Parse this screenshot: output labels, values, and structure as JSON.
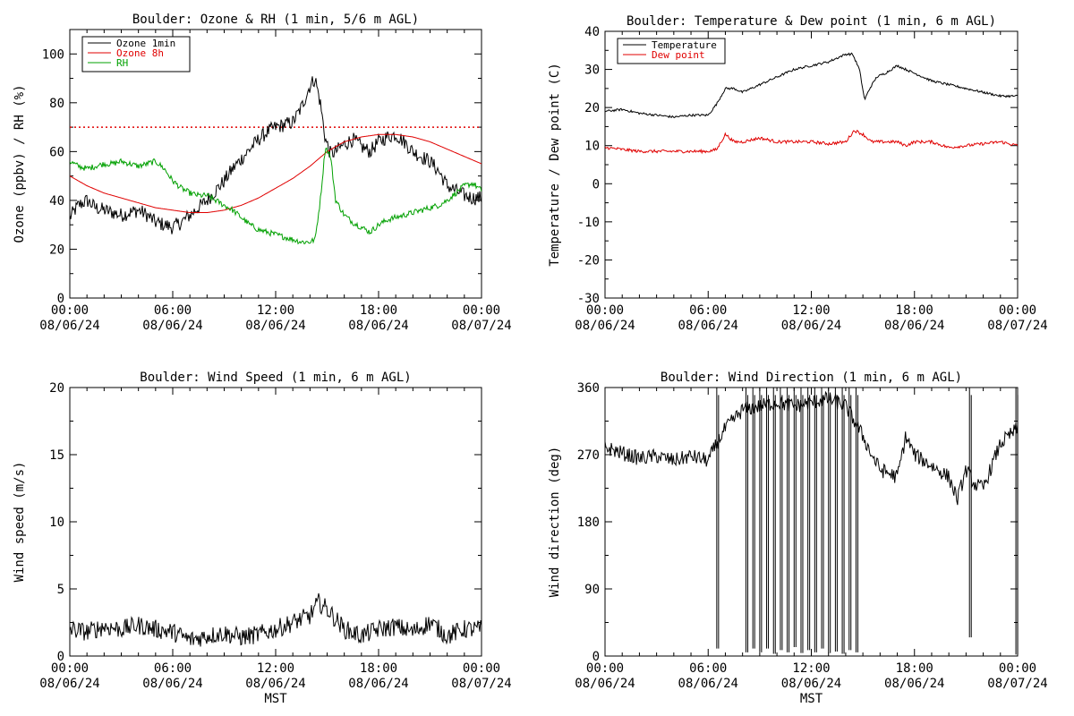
{
  "x_ticks": {
    "times": [
      "00:00",
      "06:00",
      "12:00",
      "18:00",
      "00:00"
    ],
    "dates": [
      "08/06/24",
      "08/06/24",
      "08/06/24",
      "08/06/24",
      "08/07/24"
    ]
  },
  "colors": {
    "black": "#000000",
    "red": "#e00000",
    "green": "#00a000"
  },
  "chart_data": [
    {
      "type": "line",
      "title": "Boulder: Ozone & RH (1 min, 5/6 m AGL)",
      "xlabel": "",
      "ylabel": "Ozone (ppbv) / RH (%)",
      "xlim": [
        0,
        24
      ],
      "ylim": [
        0,
        110
      ],
      "yticks": [
        0,
        20,
        40,
        60,
        80,
        100
      ],
      "legend_position": "top-left",
      "reference_line": {
        "y": 70,
        "style": "dotted",
        "color": "#e00000"
      },
      "series": [
        {
          "name": "Ozone 1min",
          "color": "#000000",
          "noise": 3,
          "x": [
            0,
            0.5,
            1,
            1.5,
            2,
            2.5,
            3,
            3.5,
            4,
            4.5,
            5,
            5.5,
            6,
            6.5,
            7,
            7.5,
            8,
            8.5,
            9,
            9.5,
            10,
            10.5,
            11,
            11.5,
            12,
            12.5,
            13,
            13.5,
            14,
            14.3,
            14.6,
            14.9,
            15.2,
            15.5,
            16,
            16.5,
            17,
            17.5,
            18,
            18.5,
            19,
            19.5,
            20,
            20.5,
            21,
            21.5,
            22,
            22.5,
            23,
            23.5,
            24
          ],
          "y": [
            33,
            38,
            40,
            37,
            36,
            35,
            34,
            35,
            36,
            34,
            31,
            30,
            29,
            31,
            34,
            37,
            40,
            44,
            48,
            53,
            57,
            61,
            65,
            68,
            70,
            71,
            72,
            78,
            87,
            90,
            80,
            65,
            59,
            60,
            63,
            65,
            62,
            60,
            64,
            66,
            67,
            64,
            60,
            58,
            56,
            52,
            46,
            44,
            42,
            41,
            41
          ]
        },
        {
          "name": "Ozone 8h",
          "color": "#e00000",
          "noise": 0,
          "x": [
            0,
            1,
            2,
            3,
            4,
            5,
            6,
            7,
            8,
            9,
            10,
            11,
            12,
            13,
            14,
            15,
            16,
            17,
            18,
            19,
            20,
            21,
            22,
            23,
            24
          ],
          "y": [
            50,
            46,
            43,
            41,
            39,
            37,
            36,
            35,
            35,
            36,
            38,
            41,
            45,
            49,
            54,
            60,
            64,
            66,
            67,
            67,
            66,
            64,
            61,
            58,
            55
          ]
        },
        {
          "name": "RH",
          "color": "#00a000",
          "noise": 1.2,
          "x": [
            0,
            0.5,
            1,
            1.5,
            2,
            2.5,
            3,
            3.5,
            4,
            4.5,
            5,
            5.5,
            6,
            6.5,
            7,
            7.5,
            8,
            8.5,
            9,
            9.5,
            10,
            10.5,
            11,
            11.5,
            12,
            12.5,
            13,
            13.5,
            14,
            14.3,
            14.6,
            14.9,
            15.2,
            15.5,
            16,
            16.5,
            17,
            17.5,
            18,
            18.5,
            19,
            19.5,
            20,
            20.5,
            21,
            21.5,
            22,
            22.5,
            23,
            23.5,
            24
          ],
          "y": [
            56,
            54,
            53,
            54,
            55,
            55,
            56,
            55,
            54,
            55,
            56,
            53,
            48,
            45,
            43,
            42,
            42,
            40,
            38,
            36,
            33,
            30,
            28,
            27,
            26,
            25,
            24,
            23,
            23,
            24,
            40,
            62,
            58,
            40,
            34,
            31,
            29,
            27,
            30,
            32,
            33,
            34,
            35,
            36,
            37,
            38,
            40,
            43,
            46,
            47,
            44
          ]
        }
      ]
    },
    {
      "type": "line",
      "title": "Boulder: Temperature & Dew point (1 min, 6 m AGL)",
      "xlabel": "",
      "ylabel": "Temperature / Dew point (C)",
      "xlim": [
        0,
        24
      ],
      "ylim": [
        -30,
        40
      ],
      "yticks": [
        -30,
        -20,
        -10,
        0,
        10,
        20,
        30,
        40
      ],
      "legend_position": "top-left",
      "series": [
        {
          "name": "Temperature",
          "color": "#000000",
          "noise": 0.3,
          "x": [
            0,
            1,
            2,
            3,
            4,
            5,
            6,
            6.5,
            7,
            7.5,
            8,
            9,
            10,
            11,
            12,
            13,
            14,
            14.4,
            14.8,
            15.1,
            15.4,
            15.8,
            16.3,
            17,
            17.5,
            18,
            19,
            20,
            21,
            22,
            23,
            24
          ],
          "y": [
            19,
            19.5,
            18.5,
            18,
            17.5,
            18,
            18,
            21,
            25,
            25,
            24,
            26,
            28,
            30,
            31,
            32,
            34,
            34,
            30,
            22,
            25,
            28,
            29,
            31,
            30,
            29,
            27,
            26,
            25,
            24,
            23,
            23
          ]
        },
        {
          "name": "Dew point",
          "color": "#e00000",
          "noise": 0.4,
          "x": [
            0,
            1,
            2,
            3,
            4,
            5,
            6,
            6.5,
            7,
            7.5,
            8,
            9,
            10,
            11,
            12,
            13,
            14,
            14.5,
            15,
            15.5,
            16,
            17,
            17.5,
            18,
            19,
            20,
            21,
            22,
            23,
            24
          ],
          "y": [
            9.5,
            9,
            8.5,
            8.5,
            8.5,
            8.5,
            8.5,
            9,
            13,
            11,
            11,
            12,
            11,
            11,
            11,
            10.5,
            11,
            14,
            13,
            11,
            11,
            11,
            10,
            11,
            11,
            9.5,
            10,
            10.5,
            11,
            10
          ]
        }
      ]
    },
    {
      "type": "line",
      "title": "Boulder: Wind Speed (1 min, 6 m AGL)",
      "xlabel": "MST",
      "ylabel": "Wind speed (m/s)",
      "xlim": [
        0,
        24
      ],
      "ylim": [
        0,
        20
      ],
      "yticks": [
        0,
        5,
        10,
        15,
        20
      ],
      "series": [
        {
          "name": "",
          "color": "#000000",
          "noise": 0.7,
          "x": [
            0,
            1,
            2,
            3,
            4,
            5,
            6,
            7,
            8,
            9,
            10,
            11,
            12,
            13,
            14,
            14.5,
            15,
            16,
            17,
            18,
            19,
            20,
            21,
            22,
            23,
            24
          ],
          "y": [
            2,
            1.8,
            2.2,
            2.0,
            2.3,
            2.0,
            1.8,
            1.2,
            1.5,
            1.7,
            1.4,
            1.6,
            2.0,
            2.5,
            3.0,
            4.0,
            3.5,
            2.0,
            1.5,
            2.0,
            2.2,
            1.8,
            2.5,
            1.5,
            2.0,
            2.0
          ]
        }
      ]
    },
    {
      "type": "line",
      "title": "Boulder: Wind Direction (1 min, 6 m AGL)",
      "xlabel": "MST",
      "ylabel": "Wind direction (deg)",
      "xlim": [
        0,
        24
      ],
      "ylim": [
        0,
        360
      ],
      "yticks": [
        0,
        90,
        180,
        270,
        360
      ],
      "series": [
        {
          "name": "",
          "color": "#000000",
          "noise": 10,
          "x": [
            0,
            1,
            2,
            3,
            4,
            5,
            6,
            6.5,
            7,
            8,
            9,
            10,
            11,
            12,
            13,
            14,
            15,
            15.5,
            16,
            17,
            17.5,
            18,
            19,
            20,
            20.5,
            21,
            21.5,
            22,
            22.5,
            23,
            24
          ],
          "y": [
            280,
            272,
            265,
            268,
            262,
            268,
            262,
            285,
            305,
            330,
            335,
            340,
            335,
            340,
            345,
            335,
            295,
            270,
            250,
            240,
            295,
            270,
            255,
            240,
            210,
            250,
            230,
            225,
            255,
            285,
            305
          ]
        }
      ],
      "spikes": [
        {
          "x": 6.5,
          "y": 10
        },
        {
          "x": 8.2,
          "y": 5
        },
        {
          "x": 8.6,
          "y": 10
        },
        {
          "x": 9.0,
          "y": 5
        },
        {
          "x": 9.4,
          "y": 10
        },
        {
          "x": 9.8,
          "y": 3
        },
        {
          "x": 10.2,
          "y": 8
        },
        {
          "x": 10.6,
          "y": 5
        },
        {
          "x": 11.0,
          "y": 12
        },
        {
          "x": 11.4,
          "y": 4
        },
        {
          "x": 11.8,
          "y": 8
        },
        {
          "x": 12.2,
          "y": 5
        },
        {
          "x": 12.6,
          "y": 10
        },
        {
          "x": 13.0,
          "y": 4
        },
        {
          "x": 13.4,
          "y": 6
        },
        {
          "x": 13.8,
          "y": 3
        },
        {
          "x": 14.2,
          "y": 8
        },
        {
          "x": 14.6,
          "y": 5
        },
        {
          "x": 21.2,
          "y": 25
        },
        {
          "x": 23.9,
          "y": 2
        }
      ]
    }
  ]
}
